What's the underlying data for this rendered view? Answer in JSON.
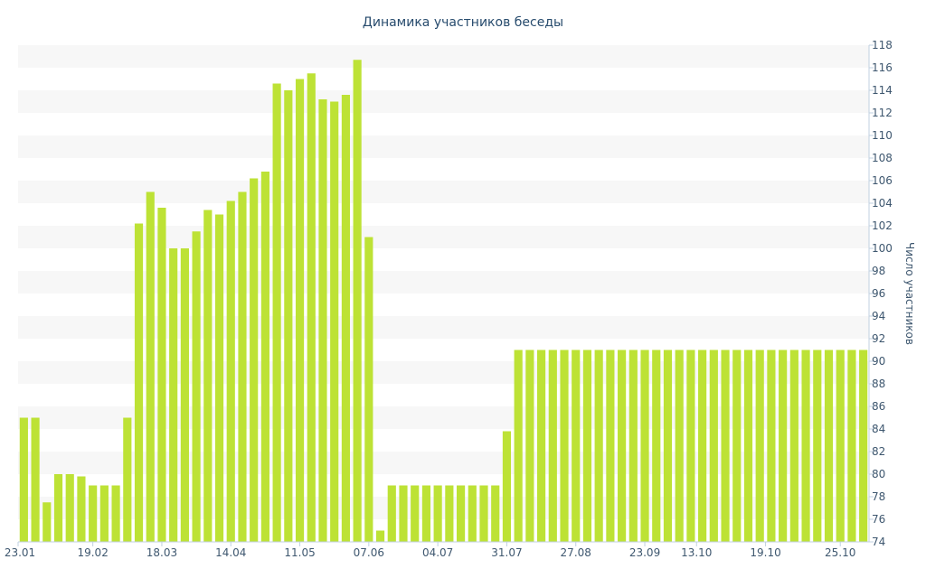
{
  "chart_data": {
    "type": "bar",
    "title": "Динамика участников беседы",
    "xlabel": "",
    "ylabel": "Число участников",
    "y_axis_position": "right",
    "ylim": [
      74,
      118
    ],
    "y_tick_step": 2,
    "grid": "alternating horizontal bands",
    "legend": "none",
    "x_tick_labels": [
      {
        "label": "23.01",
        "index": 0
      },
      {
        "label": "19.02",
        "index": 6.5
      },
      {
        "label": "18.03",
        "index": 12.5
      },
      {
        "label": "14.04",
        "index": 18.5
      },
      {
        "label": "11.05",
        "index": 24.5
      },
      {
        "label": "07.06",
        "index": 30.5
      },
      {
        "label": "04.07",
        "index": 36.5
      },
      {
        "label": "31.07",
        "index": 42.5
      },
      {
        "label": "27.08",
        "index": 48.5
      },
      {
        "label": "23.09",
        "index": 54.5
      },
      {
        "label": "13.10",
        "index": 59
      },
      {
        "label": "19.10",
        "index": 65
      },
      {
        "label": "25.10",
        "index": 71.5
      }
    ],
    "series": [
      {
        "values": [
          85,
          85,
          77.5,
          80,
          80,
          79.8,
          79,
          79,
          79,
          85,
          102.2,
          105,
          103.6,
          100,
          100,
          101.5,
          103.4,
          103,
          104.2,
          105,
          106.2,
          106.8,
          114.6,
          114,
          115,
          115.5,
          113.2,
          113,
          113.6,
          116.7,
          101,
          75,
          79,
          79,
          79,
          79,
          79,
          79,
          79,
          79,
          79,
          79,
          83.8,
          91,
          91,
          91,
          91,
          91,
          91,
          91,
          91,
          91,
          91,
          91,
          91,
          91,
          91,
          91,
          91,
          91,
          91,
          91,
          91,
          91,
          91,
          91,
          91,
          91,
          91,
          91,
          91,
          91,
          91,
          91
        ],
        "color": "#bde235"
      }
    ],
    "colors": {
      "bar": "#bde235",
      "band": "#f7f7f7",
      "title": "#274b6d",
      "axis_text": "#3e576f",
      "axis_line": "#c0d0e0"
    }
  }
}
